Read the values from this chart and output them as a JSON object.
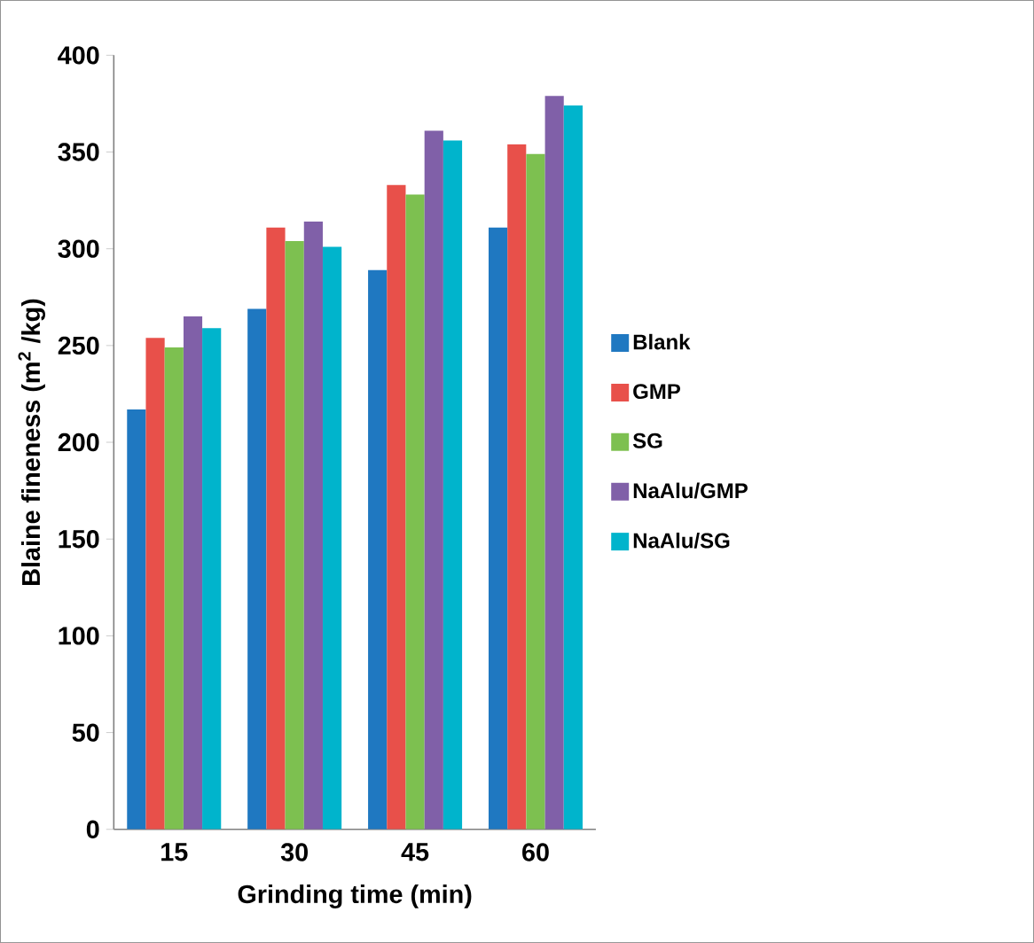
{
  "chart_data": {
    "type": "bar",
    "xlabel": "Grinding time (min)",
    "ylabel": "Blaine fineness (m$^{2}$ /kg)",
    "categories": [
      "15",
      "30",
      "45",
      "60"
    ],
    "ylim": [
      0,
      400
    ],
    "yticks": [
      0,
      50,
      100,
      150,
      200,
      250,
      300,
      350,
      400
    ],
    "grid": false,
    "legend": "right",
    "series": [
      {
        "name": "Blank",
        "color": "#1f78c1",
        "values": [
          217,
          269,
          289,
          311
        ]
      },
      {
        "name": "GMP",
        "color": "#e8504a",
        "values": [
          254,
          311,
          333,
          354
        ]
      },
      {
        "name": "SG",
        "color": "#7dc050",
        "values": [
          249,
          304,
          328,
          349
        ]
      },
      {
        "name": "NaAlu/GMP",
        "color": "#8060a8",
        "values": [
          265,
          314,
          361,
          379
        ]
      },
      {
        "name": "NaAlu/SG",
        "color": "#00b4cc",
        "values": [
          259,
          301,
          356,
          374
        ]
      }
    ]
  }
}
